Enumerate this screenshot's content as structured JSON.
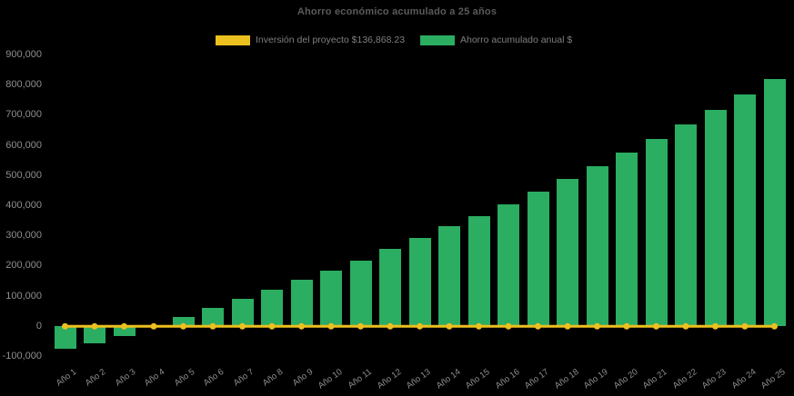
{
  "title": "Ahorro económico acumulado a 25 años",
  "legend": {
    "investment": {
      "label": "Inversión del proyecto $136,868.23",
      "color": "#ECC01E"
    },
    "savings": {
      "label": "Ahorro acumulado anual $",
      "color": "#2BAD62"
    }
  },
  "colors": {
    "background": "#000000",
    "bar_green": "#2BAD62",
    "line_gold": "#ECC01E",
    "title_text": "#5A5A5A",
    "axis_text": "#8E8E8E",
    "legend_text": "#7F7F7F"
  },
  "chart_data": {
    "type": "bar",
    "title": "Ahorro económico acumulado a 25 años",
    "categories": [
      "Año 1",
      "Año 2",
      "Año 3",
      "Año 4",
      "Año 5",
      "Año 6",
      "Año 7",
      "Año 8",
      "Año 9",
      "Año 10",
      "Año 11",
      "Año 12",
      "Año 13",
      "Año 14",
      "Año 15",
      "Año 16",
      "Año 17",
      "Año 18",
      "Año 19",
      "Año 20",
      "Año 21",
      "Año 22",
      "Año 23",
      "Año 24",
      "Año 25"
    ],
    "series": [
      {
        "name": "Ahorro acumulado anual $",
        "type": "bar",
        "color": "#2BAD62",
        "values": [
          -75000,
          -56000,
          -31000,
          -2000,
          31000,
          61000,
          91000,
          121000,
          154000,
          186000,
          219000,
          256000,
          293000,
          331000,
          366000,
          406000,
          447000,
          490000,
          532000,
          577000,
          621000,
          671000,
          719000,
          769000,
          819000
        ]
      },
      {
        "name": "Inversión del proyecto $136,868.23",
        "type": "line",
        "color": "#ECC01E",
        "marker": "circle",
        "values": [
          0,
          0,
          0,
          0,
          0,
          0,
          0,
          0,
          0,
          0,
          0,
          0,
          0,
          0,
          0,
          0,
          0,
          0,
          0,
          0,
          0,
          0,
          0,
          0,
          0
        ]
      }
    ],
    "investment_value_label": "$136,868.23",
    "ylabel": "",
    "xlabel": "",
    "ylim": [
      -100000,
      900000
    ],
    "ytick_step": 100000,
    "grid": false,
    "legend_position": "top-center",
    "background": "#000000"
  }
}
